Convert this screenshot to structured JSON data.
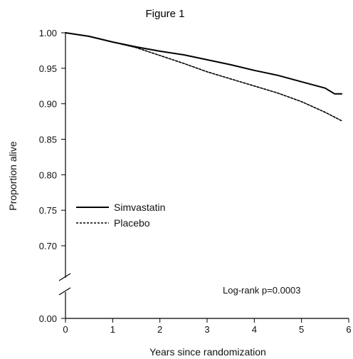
{
  "chart_data": {
    "type": "line",
    "title": "Figure 1",
    "xlabel": "Years since randomization",
    "ylabel": "Proportion alive",
    "xlim": [
      0,
      6
    ],
    "ylim": [
      0.0,
      1.0
    ],
    "axis_break": {
      "between": [
        0.0,
        0.7
      ]
    },
    "x_ticks": [
      0,
      1,
      2,
      3,
      4,
      5,
      6
    ],
    "y_ticks": [
      1.0,
      0.95,
      0.9,
      0.85,
      0.8,
      0.75,
      0.7,
      0.0
    ],
    "y_tick_labels": [
      "1.00",
      "0.95",
      "0.90",
      "0.85",
      "0.80",
      "0.75",
      "0.70",
      "0.00"
    ],
    "x_tick_labels": [
      "0",
      "1",
      "2",
      "3",
      "4",
      "5",
      "6"
    ],
    "grid": false,
    "legend": {
      "position": "lower-left"
    },
    "series": [
      {
        "name": "Simvastatin",
        "style": "solid",
        "color": "#000000",
        "x": [
          0,
          0.5,
          1,
          1.5,
          2,
          2.5,
          3,
          3.5,
          4,
          4.5,
          5,
          5.5,
          5.7,
          5.85
        ],
        "y": [
          1.0,
          0.995,
          0.987,
          0.98,
          0.974,
          0.969,
          0.962,
          0.955,
          0.947,
          0.94,
          0.931,
          0.922,
          0.914,
          0.914
        ]
      },
      {
        "name": "Placebo",
        "style": "dashed",
        "color": "#000000",
        "x": [
          0,
          0.5,
          1,
          1.5,
          2,
          2.5,
          3,
          3.5,
          4,
          4.5,
          5,
          5.5,
          5.85
        ],
        "y": [
          1.0,
          0.995,
          0.987,
          0.979,
          0.968,
          0.957,
          0.945,
          0.935,
          0.925,
          0.915,
          0.903,
          0.888,
          0.876
        ]
      }
    ],
    "annotations": [
      "Log-rank p=0.0003"
    ]
  }
}
